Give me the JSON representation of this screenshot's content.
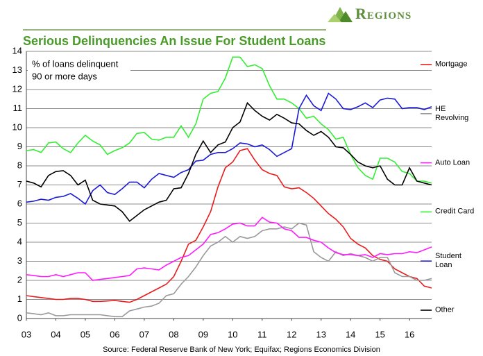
{
  "logo": "Regions",
  "chart_data": {
    "type": "line",
    "title": "Serious Delinquencies An Issue For Student Loans",
    "annotation": [
      "% of loans delinquent",
      "90 or more days"
    ],
    "source": "Source: Federal Reserve Bank of New York; Equifax; Regions Economics Division",
    "x": [
      2003,
      2003.25,
      2003.5,
      2003.75,
      2004,
      2004.25,
      2004.5,
      2004.75,
      2005,
      2005.25,
      2005.5,
      2005.75,
      2006,
      2006.25,
      2006.5,
      2006.75,
      2007,
      2007.25,
      2007.5,
      2007.75,
      2008,
      2008.25,
      2008.5,
      2008.75,
      2009,
      2009.25,
      2009.5,
      2009.75,
      2010,
      2010.25,
      2010.5,
      2010.75,
      2011,
      2011.25,
      2011.5,
      2011.75,
      2012,
      2012.25,
      2012.5,
      2012.75,
      2013,
      2013.25,
      2013.5,
      2013.75,
      2014,
      2014.25,
      2014.5,
      2014.75,
      2015,
      2015.25,
      2015.5,
      2015.75,
      2016,
      2016.25,
      2016.5,
      2016.75
    ],
    "xlim": [
      2003,
      2016.75
    ],
    "xticks": [
      {
        "value": 2003,
        "label": "03"
      },
      {
        "value": 2004,
        "label": "04"
      },
      {
        "value": 2005,
        "label": "05"
      },
      {
        "value": 2006,
        "label": "06"
      },
      {
        "value": 2007,
        "label": "07"
      },
      {
        "value": 2008,
        "label": "08"
      },
      {
        "value": 2009,
        "label": "09"
      },
      {
        "value": 2010,
        "label": "10"
      },
      {
        "value": 2011,
        "label": "11"
      },
      {
        "value": 2012,
        "label": "12"
      },
      {
        "value": 2013,
        "label": "13"
      },
      {
        "value": 2014,
        "label": "14"
      },
      {
        "value": 2015,
        "label": "15"
      },
      {
        "value": 2016,
        "label": "16"
      }
    ],
    "ylim": [
      0,
      14
    ],
    "yticks": [
      0,
      1,
      2,
      3,
      4,
      5,
      6,
      7,
      8,
      9,
      10,
      11,
      12,
      13,
      14
    ],
    "grid": true,
    "legend": "right",
    "series": [
      {
        "name": "Mortgage",
        "color": "#e81c1c",
        "values": [
          1.2,
          1.15,
          1.1,
          1.05,
          1.0,
          1.0,
          1.05,
          1.05,
          1.0,
          0.9,
          0.9,
          0.92,
          0.95,
          0.9,
          0.85,
          1.0,
          1.2,
          1.4,
          1.6,
          1.8,
          2.2,
          3.0,
          3.9,
          4.1,
          4.8,
          5.6,
          6.9,
          7.9,
          8.2,
          8.8,
          8.9,
          8.3,
          7.8,
          7.6,
          7.5,
          6.9,
          6.8,
          6.85,
          6.6,
          6.3,
          5.9,
          5.5,
          5.2,
          4.8,
          4.2,
          3.9,
          3.7,
          3.3,
          3.1,
          3.0,
          2.6,
          2.4,
          2.2,
          2.1,
          1.7,
          1.6
        ]
      },
      {
        "name": "HE Revolving",
        "color": "#999999",
        "values": [
          0.3,
          0.25,
          0.2,
          0.3,
          0.15,
          0.15,
          0.2,
          0.2,
          0.2,
          0.2,
          0.2,
          0.15,
          0.1,
          0.1,
          0.4,
          0.5,
          0.6,
          0.65,
          0.8,
          1.2,
          1.3,
          1.8,
          2.2,
          2.7,
          3.3,
          3.8,
          4.0,
          4.3,
          4.0,
          4.3,
          4.2,
          4.3,
          4.6,
          4.7,
          4.7,
          4.8,
          4.7,
          5.0,
          4.9,
          3.5,
          3.2,
          3.0,
          3.5,
          3.3,
          3.4,
          3.3,
          3.2,
          3.0,
          3.2,
          3.2,
          2.4,
          2.2,
          2.2,
          2.0,
          2.0,
          2.1
        ]
      },
      {
        "name": "Auto Loan",
        "color": "#ff1aff",
        "values": [
          2.3,
          2.25,
          2.2,
          2.2,
          2.3,
          2.2,
          2.3,
          2.4,
          2.4,
          2.0,
          2.05,
          2.1,
          2.15,
          2.2,
          2.25,
          2.6,
          2.65,
          2.6,
          2.55,
          2.8,
          3.0,
          3.2,
          3.3,
          3.6,
          3.9,
          4.4,
          4.5,
          4.7,
          4.95,
          5.0,
          4.85,
          4.85,
          5.3,
          5.05,
          5.0,
          4.7,
          4.6,
          4.25,
          4.25,
          4.1,
          4.0,
          3.7,
          3.45,
          3.35,
          3.35,
          3.3,
          3.35,
          3.2,
          3.4,
          3.35,
          3.4,
          3.4,
          3.5,
          3.45,
          3.6,
          3.75
        ]
      },
      {
        "name": "Credit Card",
        "color": "#33ee33",
        "values": [
          8.8,
          8.85,
          8.7,
          9.2,
          9.25,
          8.9,
          8.7,
          9.2,
          9.6,
          9.3,
          9.1,
          8.6,
          8.8,
          8.95,
          9.2,
          9.7,
          9.75,
          9.4,
          9.35,
          9.5,
          9.5,
          10.1,
          9.5,
          10.2,
          11.5,
          11.8,
          11.9,
          12.6,
          13.7,
          13.7,
          13.2,
          13.3,
          13.1,
          12.2,
          11.5,
          11.5,
          11.3,
          11.0,
          10.5,
          10.6,
          10.2,
          9.9,
          9.4,
          9.5,
          8.6,
          7.9,
          7.5,
          7.3,
          8.4,
          8.4,
          8.2,
          7.7,
          7.6,
          7.2,
          7.2,
          7.1
        ]
      },
      {
        "name": "Student Loan",
        "color": "#1a1ad6",
        "values": [
          6.1,
          6.15,
          6.25,
          6.2,
          6.35,
          6.4,
          6.55,
          6.3,
          6.0,
          6.7,
          7.0,
          6.6,
          6.5,
          6.8,
          7.15,
          7.15,
          6.85,
          7.3,
          7.6,
          7.5,
          7.4,
          7.65,
          7.8,
          8.25,
          8.3,
          8.6,
          8.7,
          8.7,
          8.9,
          9.2,
          9.15,
          9.0,
          9.1,
          8.85,
          8.5,
          8.7,
          8.9,
          11.0,
          11.7,
          11.15,
          10.9,
          11.8,
          11.5,
          11.0,
          10.95,
          11.1,
          11.3,
          11.05,
          11.45,
          11.55,
          11.5,
          11.0,
          11.05,
          11.05,
          10.95,
          11.1
        ]
      },
      {
        "name": "Other",
        "color": "#000000",
        "values": [
          7.2,
          7.1,
          6.9,
          7.5,
          7.7,
          7.75,
          7.5,
          7.0,
          7.25,
          6.2,
          6.0,
          5.95,
          5.9,
          5.6,
          5.1,
          5.4,
          5.7,
          5.9,
          6.1,
          6.2,
          6.8,
          6.85,
          7.6,
          8.6,
          9.3,
          8.7,
          9.1,
          9.25,
          10.0,
          10.3,
          11.3,
          10.9,
          10.6,
          10.4,
          10.7,
          10.5,
          10.25,
          10.2,
          9.85,
          9.6,
          9.8,
          9.5,
          9.0,
          8.95,
          8.6,
          8.2,
          8.0,
          7.9,
          8.0,
          7.3,
          7.0,
          7.0,
          7.9,
          7.2,
          7.1,
          7.0
        ]
      }
    ]
  }
}
